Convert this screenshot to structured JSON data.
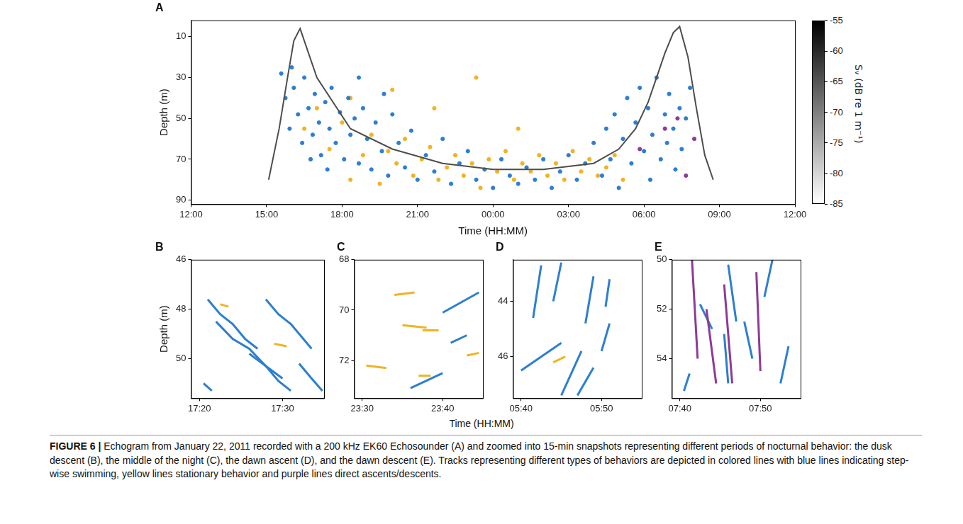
{
  "chart_data": [
    {
      "panel": "A",
      "type": "scatter",
      "xlabel": "Time (HH:MM)",
      "ylabel": "Depth (m)",
      "xlim": [
        720,
        2160
      ],
      "xticks": [
        {
          "value": 720,
          "label": "12:00"
        },
        {
          "value": 900,
          "label": "15:00"
        },
        {
          "value": 1080,
          "label": "18:00"
        },
        {
          "value": 1260,
          "label": "21:00"
        },
        {
          "value": 1440,
          "label": "00:00"
        },
        {
          "value": 1620,
          "label": "03:00"
        },
        {
          "value": 1800,
          "label": "06:00"
        },
        {
          "value": 1980,
          "label": "09:00"
        },
        {
          "value": 2160,
          "label": "12:00"
        }
      ],
      "ylim": [
        92,
        2
      ],
      "yticks": [
        10,
        30,
        50,
        70,
        90
      ],
      "grid": false,
      "colorbar": {
        "label": "Sᵥ (dB re 1 m⁻¹)",
        "range": [
          -85,
          -55
        ],
        "ticks": [
          -55,
          -60,
          -65,
          -70,
          -75,
          -80,
          -85
        ]
      },
      "series": [
        {
          "type": "line",
          "color": "#4d4d4d",
          "line_style": "solid",
          "x": [
            905,
            930,
            950,
            965,
            980,
            1020,
            1100,
            1200,
            1320,
            1440,
            1560,
            1680,
            1740,
            1780,
            1810,
            1830,
            1850,
            1870,
            1885,
            1905,
            1925,
            1945,
            1965
          ],
          "values": [
            80,
            55,
            30,
            12,
            6,
            30,
            55,
            65,
            72,
            75,
            75,
            72,
            65,
            55,
            42,
            30,
            18,
            8,
            5,
            20,
            45,
            68,
            80
          ]
        },
        {
          "type": "scatter",
          "color": "#2c7fd1",
          "marker": "circle",
          "x": [
            935,
            945,
            955,
            965,
            975,
            985,
            990,
            1000,
            1010,
            1015,
            1025,
            1030,
            1040,
            1050,
            1055,
            1065,
            1075,
            1085,
            1095,
            1100,
            1110,
            1120,
            1130,
            1140,
            1150,
            1160,
            1175,
            1190,
            1200,
            1215,
            1230,
            1245,
            1260,
            1280,
            1300,
            1320,
            1340,
            1360,
            1380,
            1400,
            1420,
            1440,
            1460,
            1480,
            1500,
            1520,
            1540,
            1560,
            1580,
            1600,
            1620,
            1640,
            1660,
            1680,
            1700,
            1710,
            1720,
            1730,
            1740,
            1750,
            1760,
            1770,
            1780,
            1790,
            1800,
            1810,
            1815,
            1820,
            1830,
            1840,
            1850,
            1855,
            1860,
            1870,
            1875,
            1885,
            1890,
            1900,
            1910,
            960,
            1005,
            1045,
            1120,
            1180
          ],
          "values": [
            28,
            40,
            55,
            35,
            48,
            62,
            30,
            45,
            58,
            38,
            52,
            68,
            42,
            55,
            35,
            62,
            47,
            70,
            40,
            58,
            50,
            72,
            45,
            60,
            75,
            52,
            66,
            78,
            48,
            62,
            74,
            56,
            80,
            68,
            76,
            60,
            82,
            72,
            66,
            80,
            75,
            84,
            70,
            78,
            82,
            74,
            80,
            70,
            84,
            76,
            68,
            80,
            72,
            62,
            78,
            55,
            70,
            48,
            84,
            60,
            40,
            72,
            52,
            35,
            66,
            45,
            80,
            58,
            30,
            70,
            48,
            62,
            38,
            55,
            75,
            45,
            65,
            50,
            35,
            25,
            70,
            75,
            30,
            38
          ]
        },
        {
          "type": "scatter",
          "color": "#f0b323",
          "marker": "circle",
          "x": [
            990,
            1020,
            1050,
            1080,
            1100,
            1130,
            1150,
            1170,
            1190,
            1210,
            1230,
            1250,
            1270,
            1290,
            1310,
            1330,
            1350,
            1370,
            1390,
            1410,
            1430,
            1450,
            1470,
            1490,
            1510,
            1530,
            1550,
            1570,
            1590,
            1610,
            1630,
            1650,
            1670,
            1690,
            1710,
            1730,
            1750,
            1200,
            1300,
            1400,
            1100,
            1500
          ],
          "values": [
            55,
            45,
            65,
            52,
            80,
            68,
            58,
            82,
            66,
            72,
            60,
            78,
            70,
            64,
            80,
            74,
            68,
            78,
            72,
            84,
            70,
            76,
            66,
            80,
            72,
            76,
            68,
            78,
            72,
            80,
            66,
            76,
            70,
            78,
            74,
            68,
            80,
            36,
            45,
            30,
            40,
            55
          ]
        },
        {
          "type": "scatter",
          "color": "#8e3b96",
          "marker": "circle",
          "x": [
            1790,
            1850,
            1880,
            1900,
            1920
          ],
          "values": [
            65,
            55,
            50,
            78,
            60
          ]
        }
      ]
    },
    {
      "panel": "B",
      "type": "scatter",
      "ylabel": "Depth (m)",
      "xlim": [
        1039,
        1055
      ],
      "xticks": [
        {
          "value": 1040,
          "label": "17:20"
        },
        {
          "value": 1050,
          "label": "17:30"
        }
      ],
      "ylim": [
        51.6,
        46
      ],
      "yticks": [
        46,
        48,
        50
      ],
      "grid": false,
      "series": [
        {
          "type": "line",
          "color": "#2c7fd1",
          "x": [
            1041,
            1042.5,
            1044,
            1045.5,
            1047
          ],
          "values": [
            47.6,
            48.2,
            48.6,
            49.2,
            49.6
          ]
        },
        {
          "type": "line",
          "color": "#2c7fd1",
          "x": [
            1042,
            1044,
            1046,
            1048,
            1050
          ],
          "values": [
            48.5,
            49.2,
            49.6,
            50.3,
            50.8
          ]
        },
        {
          "type": "line",
          "color": "#2c7fd1",
          "x": [
            1048,
            1049.5,
            1051,
            1052.5,
            1053.5
          ],
          "values": [
            47.6,
            48.2,
            48.6,
            49.2,
            49.6
          ]
        },
        {
          "type": "line",
          "color": "#2c7fd1",
          "x": [
            1046,
            1048,
            1049.5,
            1051
          ],
          "values": [
            49.8,
            50.3,
            50.9,
            51.3
          ]
        },
        {
          "type": "line",
          "color": "#2c7fd1",
          "x": [
            1052,
            1053.5,
            1054.8
          ],
          "values": [
            50.2,
            50.8,
            51.3
          ]
        },
        {
          "type": "line",
          "color": "#2c7fd1",
          "x": [
            1040.5,
            1041.5
          ],
          "values": [
            51,
            51.3
          ]
        },
        {
          "type": "line",
          "color": "#f0b323",
          "x": [
            1042.5,
            1043.5
          ],
          "values": [
            47.8,
            47.9
          ]
        },
        {
          "type": "line",
          "color": "#f0b323",
          "x": [
            1049,
            1050.5
          ],
          "values": [
            49.4,
            49.5
          ]
        }
      ]
    },
    {
      "panel": "C",
      "type": "scatter",
      "xlim": [
        1409,
        1425
      ],
      "xticks": [
        {
          "value": 1410,
          "label": "23:30"
        },
        {
          "value": 1420,
          "label": "23:40"
        }
      ],
      "ylim": [
        73.5,
        68
      ],
      "yticks": [
        68,
        70,
        72
      ],
      "grid": false,
      "series": [
        {
          "type": "line",
          "color": "#f0b323",
          "x": [
            1414,
            1416.5
          ],
          "values": [
            69.4,
            69.3
          ]
        },
        {
          "type": "line",
          "color": "#f0b323",
          "x": [
            1415,
            1418
          ],
          "values": [
            70.6,
            70.7
          ]
        },
        {
          "type": "line",
          "color": "#f0b323",
          "x": [
            1417.5,
            1419.5
          ],
          "values": [
            70.8,
            70.8
          ]
        },
        {
          "type": "line",
          "color": "#f0b323",
          "x": [
            1410.5,
            1413
          ],
          "values": [
            72.2,
            72.3
          ]
        },
        {
          "type": "line",
          "color": "#f0b323",
          "x": [
            1423,
            1424.5
          ],
          "values": [
            71.8,
            71.7
          ]
        },
        {
          "type": "line",
          "color": "#f0b323",
          "x": [
            1417,
            1418.5
          ],
          "values": [
            72.6,
            72.6
          ]
        },
        {
          "type": "line",
          "color": "#2c7fd1",
          "x": [
            1420,
            1424.5
          ],
          "values": [
            70.1,
            69.3
          ]
        },
        {
          "type": "line",
          "color": "#2c7fd1",
          "x": [
            1416,
            1420
          ],
          "values": [
            73.1,
            72.5
          ]
        },
        {
          "type": "line",
          "color": "#2c7fd1",
          "x": [
            1421,
            1423
          ],
          "values": [
            71.3,
            71.0
          ]
        }
      ]
    },
    {
      "panel": "D",
      "type": "scatter",
      "xlim": [
        1779,
        1795
      ],
      "xticks": [
        {
          "value": 1780,
          "label": "05:40"
        },
        {
          "value": 1790,
          "label": "05:50"
        }
      ],
      "ylim": [
        47.5,
        42.5
      ],
      "yticks": [
        44,
        46
      ],
      "grid": false,
      "series": [
        {
          "type": "line",
          "color": "#2c7fd1",
          "x": [
            1781.5,
            1782.5
          ],
          "values": [
            44.6,
            42.7
          ]
        },
        {
          "type": "line",
          "color": "#2c7fd1",
          "x": [
            1784,
            1785
          ],
          "values": [
            44.0,
            42.6
          ]
        },
        {
          "type": "line",
          "color": "#2c7fd1",
          "x": [
            1788,
            1789
          ],
          "values": [
            44.8,
            43.1
          ]
        },
        {
          "type": "line",
          "color": "#2c7fd1",
          "x": [
            1790.5,
            1791
          ],
          "values": [
            44.2,
            43.2
          ]
        },
        {
          "type": "line",
          "color": "#2c7fd1",
          "x": [
            1780,
            1785
          ],
          "values": [
            46.5,
            45.5
          ]
        },
        {
          "type": "line",
          "color": "#2c7fd1",
          "x": [
            1785,
            1787.5
          ],
          "values": [
            47.4,
            45.8
          ]
        },
        {
          "type": "line",
          "color": "#2c7fd1",
          "x": [
            1787,
            1789
          ],
          "values": [
            47.4,
            46.4
          ]
        },
        {
          "type": "line",
          "color": "#2c7fd1",
          "x": [
            1790,
            1791
          ],
          "values": [
            45.8,
            44.8
          ]
        },
        {
          "type": "line",
          "color": "#f0b323",
          "x": [
            1784,
            1785.5
          ],
          "values": [
            46.2,
            46.0
          ]
        }
      ]
    },
    {
      "panel": "E",
      "type": "scatter",
      "xlim": [
        1899,
        1915
      ],
      "xticks": [
        {
          "value": 1900,
          "label": "07:40"
        },
        {
          "value": 1910,
          "label": "07:50"
        }
      ],
      "ylim": [
        55.6,
        50
      ],
      "yticks": [
        50,
        52,
        54
      ],
      "grid": false,
      "series": [
        {
          "type": "line",
          "color": "#8e3b96",
          "x": [
            1901.5,
            1902.2
          ],
          "values": [
            50,
            54
          ]
        },
        {
          "type": "line",
          "color": "#8e3b96",
          "x": [
            1903.3,
            1904.5
          ],
          "values": [
            52,
            55
          ]
        },
        {
          "type": "line",
          "color": "#8e3b96",
          "x": [
            1905.5,
            1906.5
          ],
          "values": [
            51,
            55
          ]
        },
        {
          "type": "line",
          "color": "#8e3b96",
          "x": [
            1909.5,
            1910
          ],
          "values": [
            50.5,
            54.5
          ]
        },
        {
          "type": "line",
          "color": "#2c7fd1",
          "x": [
            1902.5,
            1904
          ],
          "values": [
            51.8,
            52.8
          ]
        },
        {
          "type": "line",
          "color": "#2c7fd1",
          "x": [
            1905.5,
            1906
          ],
          "values": [
            53,
            55
          ]
        },
        {
          "type": "line",
          "color": "#2c7fd1",
          "x": [
            1908,
            1909
          ],
          "values": [
            52.5,
            54
          ]
        },
        {
          "type": "line",
          "color": "#2c7fd1",
          "x": [
            1910.5,
            1911.5
          ],
          "values": [
            51.5,
            50
          ]
        },
        {
          "type": "line",
          "color": "#2c7fd1",
          "x": [
            1900.5,
            1901.2
          ],
          "values": [
            55.3,
            54.6
          ]
        },
        {
          "type": "line",
          "color": "#2c7fd1",
          "x": [
            1912.5,
            1913.5
          ],
          "values": [
            55,
            53.5
          ]
        },
        {
          "type": "line",
          "color": "#2c7fd1",
          "x": [
            1906,
            1907
          ],
          "values": [
            50.2,
            52.5
          ]
        }
      ]
    }
  ],
  "shared_xlabel": "Time (HH:MM)",
  "caption": {
    "label": "FIGURE 6 |",
    "text": "Echogram from January 22, 2011 recorded with a 200 kHz EK60 Echosounder (A) and zoomed into 15-min snapshots representing different periods of nocturnal behavior: the dusk descent (B), the middle of the night (C), the dawn ascent (D), and the dawn descent (E). Tracks representing different types of behaviors are depicted in colored lines with blue lines indicating step-wise swimming, yellow lines stationary behavior and purple lines direct ascents/descents."
  }
}
